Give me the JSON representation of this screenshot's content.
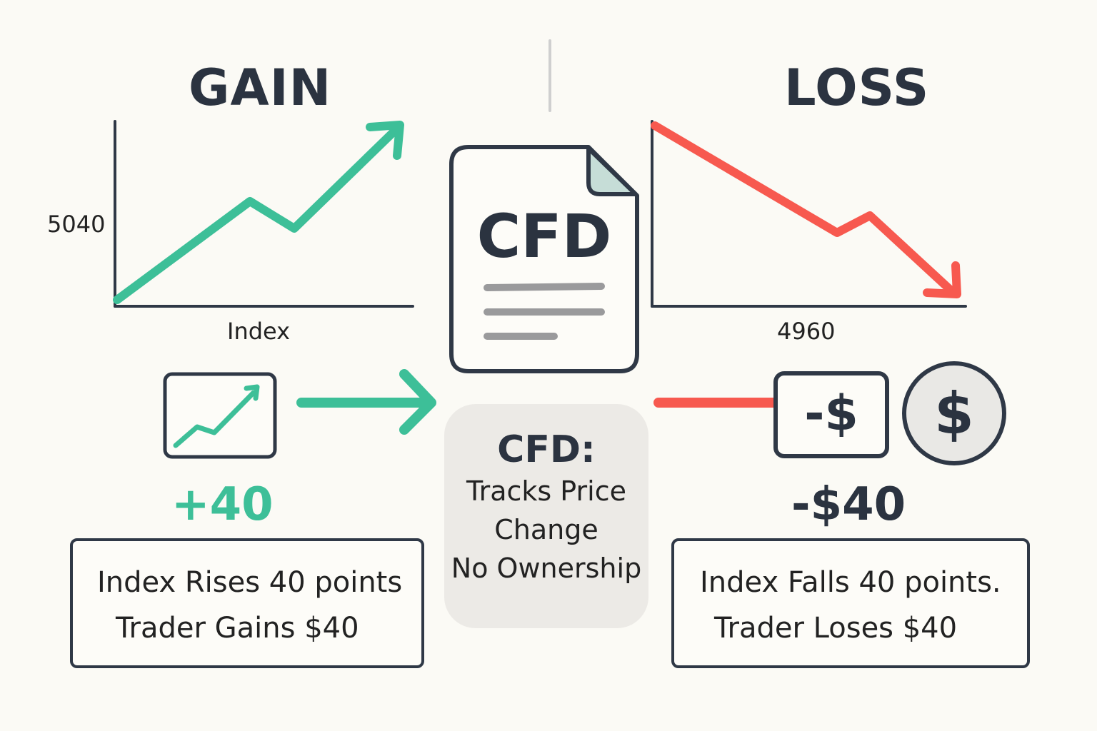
{
  "gain": {
    "heading": "GAIN",
    "y_label": "5040",
    "x_label": "Index",
    "change": "+40",
    "description": [
      "Index Rises 40 points",
      "Trader Gains $40"
    ],
    "color": "#3dbf98"
  },
  "loss": {
    "heading": "LOSS",
    "x_label": "4960",
    "change": "-$40",
    "badge_text": "-$",
    "coin_symbol": "$",
    "description": [
      "Index Falls 40 points.",
      "Trader Loses $40"
    ],
    "color": "#f7594f"
  },
  "document": {
    "label": "CFD",
    "icon": "document-icon"
  },
  "center": {
    "title": "CFD:",
    "lines": [
      "Tracks Price",
      "Change",
      "No Ownership"
    ]
  },
  "icons": [
    "trend-up-icon",
    "right-arrow-icon",
    "dollar-badge-icon",
    "dollar-coin-icon"
  ]
}
